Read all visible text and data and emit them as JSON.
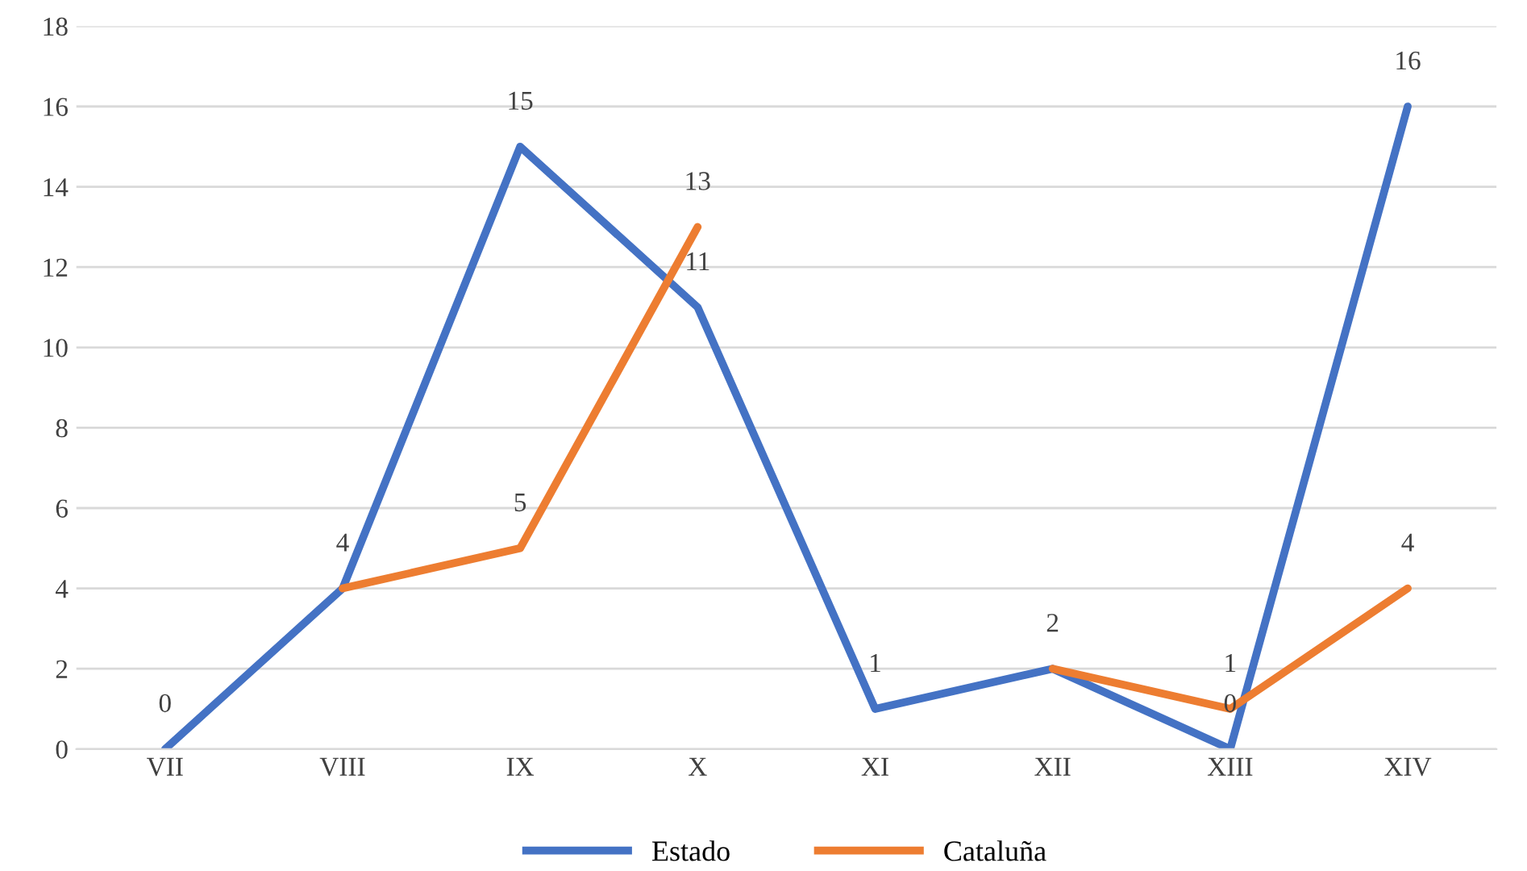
{
  "chart_data": {
    "type": "line",
    "categories": [
      "VII",
      "VIII",
      "IX",
      "X",
      "XI",
      "XII",
      "XIII",
      "XIV"
    ],
    "series": [
      {
        "name": "Estado",
        "color": "#4472c4",
        "values": [
          0,
          4,
          15,
          11,
          1,
          2,
          0,
          16
        ]
      },
      {
        "name": "Cataluña",
        "color": "#ed7d31",
        "values": [
          null,
          4,
          5,
          13,
          null,
          2,
          1,
          4
        ],
        "value_labels": [
          null,
          null,
          "5",
          "13",
          null,
          null,
          "1",
          "4"
        ]
      }
    ],
    "ylim": [
      0,
      18
    ],
    "yticks": [
      0,
      2,
      4,
      6,
      8,
      10,
      12,
      14,
      16,
      18
    ],
    "grid": "y",
    "legend": "bottom",
    "data_labels": true,
    "marker": "none",
    "line_style": "solid"
  }
}
